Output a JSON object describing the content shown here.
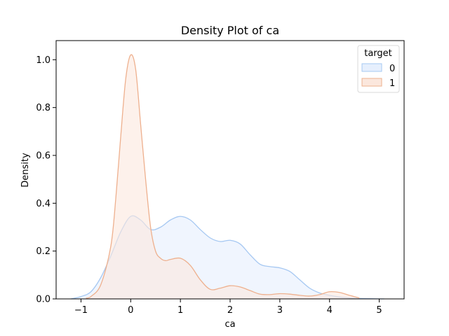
{
  "chart_data": {
    "type": "area",
    "title": "Density Plot of ca",
    "xlabel": "ca",
    "ylabel": "Density",
    "xlim": [
      -1.5,
      5.5
    ],
    "ylim": [
      0,
      1.08
    ],
    "xticks": [
      -1,
      0,
      1,
      2,
      3,
      4,
      5
    ],
    "yticks": [
      0.0,
      0.2,
      0.4,
      0.6,
      0.8,
      1.0
    ],
    "grid": false,
    "legend": {
      "title": "target",
      "placement": "top-right"
    },
    "series": [
      {
        "name": "0",
        "stroke": "#a6c8f2",
        "fill": "#e6effd",
        "x": [
          -1.2,
          -1.0,
          -0.8,
          -0.6,
          -0.4,
          -0.2,
          0.0,
          0.2,
          0.4,
          0.6,
          0.8,
          1.0,
          1.2,
          1.4,
          1.6,
          1.8,
          2.0,
          2.2,
          2.4,
          2.6,
          2.8,
          3.0,
          3.2,
          3.4,
          3.6,
          3.8,
          4.0,
          4.2,
          4.4,
          4.6,
          4.8,
          5.0,
          5.1
        ],
        "y": [
          0.0,
          0.01,
          0.03,
          0.09,
          0.18,
          0.28,
          0.345,
          0.33,
          0.29,
          0.3,
          0.33,
          0.345,
          0.33,
          0.29,
          0.255,
          0.24,
          0.245,
          0.23,
          0.185,
          0.145,
          0.135,
          0.13,
          0.115,
          0.08,
          0.045,
          0.025,
          0.015,
          0.008,
          0.004,
          0.002,
          0.001,
          0.0,
          0.0
        ]
      },
      {
        "name": "1",
        "stroke": "#eeb08e",
        "fill": "#fbe7dd",
        "x": [
          -0.9,
          -0.8,
          -0.6,
          -0.4,
          -0.3,
          -0.2,
          -0.1,
          0.0,
          0.1,
          0.2,
          0.3,
          0.4,
          0.5,
          0.6,
          0.7,
          0.8,
          1.0,
          1.2,
          1.4,
          1.6,
          1.8,
          2.0,
          2.2,
          2.4,
          2.6,
          2.8,
          3.0,
          3.2,
          3.4,
          3.6,
          3.8,
          4.0,
          4.2,
          4.4,
          4.6
        ],
        "y": [
          0.003,
          0.01,
          0.06,
          0.22,
          0.42,
          0.68,
          0.92,
          1.02,
          0.96,
          0.73,
          0.5,
          0.3,
          0.2,
          0.17,
          0.16,
          0.165,
          0.17,
          0.14,
          0.08,
          0.04,
          0.045,
          0.055,
          0.05,
          0.035,
          0.02,
          0.018,
          0.022,
          0.02,
          0.015,
          0.012,
          0.018,
          0.03,
          0.027,
          0.015,
          0.004
        ]
      }
    ]
  }
}
